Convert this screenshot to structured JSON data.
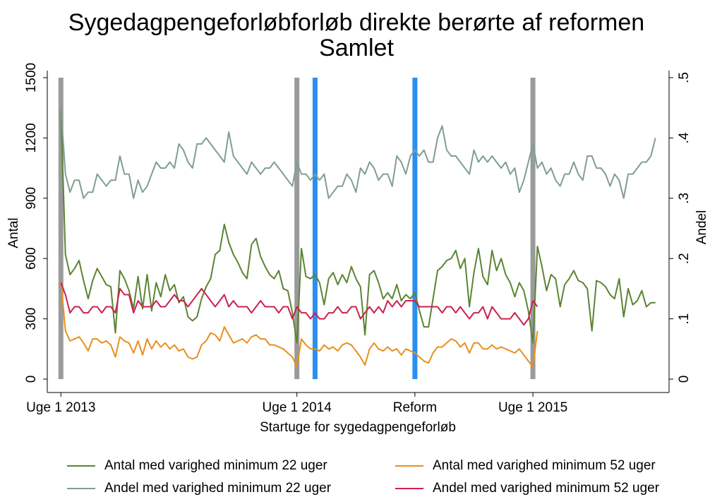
{
  "chart_data": {
    "type": "line",
    "title": "Sygedagpengeforløbforløb direkte berørte af reformen",
    "subtitle": "Samlet",
    "x_label": "Startuge for sygedagpengeforløb",
    "y_label": "Antal",
    "y2_label": "Andel",
    "x": [
      0,
      1,
      2,
      3,
      4,
      5,
      6,
      7,
      8,
      9,
      10,
      11,
      12,
      13,
      14,
      15,
      16,
      17,
      18,
      19,
      20,
      21,
      22,
      23,
      24,
      25,
      26,
      27,
      28,
      29,
      30,
      31,
      32,
      33,
      34,
      35,
      36,
      37,
      38,
      39,
      40,
      41,
      42,
      43,
      44,
      45,
      46,
      47,
      48,
      49,
      50,
      51,
      52,
      53,
      54,
      55,
      56,
      57,
      58,
      59,
      60,
      61,
      62,
      63,
      64,
      65,
      66,
      67,
      68,
      69,
      70,
      71,
      72,
      73,
      74,
      75,
      76,
      77,
      78,
      79,
      80,
      81,
      82,
      83,
      84,
      85,
      86,
      87,
      88,
      89,
      90,
      91,
      92,
      93,
      94,
      95,
      96,
      97,
      98,
      99,
      100,
      101,
      102,
      103,
      104,
      105,
      106,
      107,
      108,
      109,
      110,
      111,
      112,
      113,
      114,
      115,
      116,
      117,
      118,
      119,
      120,
      121,
      122,
      123,
      124,
      125,
      126,
      127,
      128,
      129,
      130,
      131
    ],
    "xlim": [
      -3,
      134
    ],
    "xticks": [
      {
        "value": 0,
        "label": "Uge 1 2013"
      },
      {
        "value": 52,
        "label": "Uge 1 2014"
      },
      {
        "value": 78,
        "label": "Reform"
      },
      {
        "value": 104,
        "label": "Uge 1 2015"
      }
    ],
    "ylim": [
      0,
      1500
    ],
    "yticks": [
      0,
      300,
      600,
      900,
      1200,
      1500
    ],
    "y2lim": [
      0,
      0.5
    ],
    "y2ticks": [
      0,
      {
        "value": 0.1,
        "label": ".1"
      },
      {
        "value": 0.2,
        "label": ".2"
      },
      {
        "value": 0.3,
        "label": ".3"
      },
      {
        "value": 0.4,
        "label": ".4"
      },
      {
        "value": 0.5,
        "label": ".5"
      }
    ],
    "reference_lines": [
      {
        "x": 0,
        "color": "#9a9a9a"
      },
      {
        "x": 52,
        "color": "#9a9a9a"
      },
      {
        "x": 56,
        "color": "#2b8ff0"
      },
      {
        "x": 78,
        "color": "#2b8ff0"
      },
      {
        "x": 104,
        "color": "#9a9a9a"
      }
    ],
    "series": [
      {
        "name": "Antal med varighed minimum 22 uger",
        "color": "#5b8432",
        "axis": "y",
        "values": [
          1340,
          620,
          520,
          550,
          590,
          490,
          400,
          490,
          550,
          510,
          470,
          460,
          230,
          540,
          500,
          440,
          350,
          510,
          350,
          520,
          340,
          480,
          410,
          520,
          440,
          470,
          380,
          410,
          310,
          290,
          310,
          400,
          460,
          500,
          620,
          640,
          770,
          680,
          620,
          580,
          530,
          500,
          670,
          700,
          610,
          560,
          520,
          500,
          540,
          450,
          440,
          330,
          180,
          650,
          510,
          500,
          520,
          480,
          370,
          500,
          530,
          470,
          520,
          480,
          560,
          500,
          460,
          220,
          520,
          540,
          480,
          400,
          430,
          400,
          470,
          390,
          420,
          400,
          430,
          340,
          260,
          260,
          400,
          540,
          560,
          590,
          600,
          640,
          550,
          600,
          360,
          530,
          650,
          510,
          470,
          640,
          540,
          600,
          520,
          480,
          410,
          480,
          440,
          340,
          180,
          660,
          560,
          440,
          520,
          500,
          360,
          470,
          500,
          540,
          490,
          480,
          450,
          240,
          490,
          480,
          460,
          420,
          400,
          500,
          310,
          450,
          370,
          390,
          440,
          360,
          380,
          380
        ]
      },
      {
        "name": "Antal med varighed minimum 52 uger",
        "color": "#e8901c",
        "axis": "y",
        "values": [
          490,
          240,
          190,
          200,
          210,
          180,
          140,
          200,
          200,
          180,
          190,
          170,
          110,
          210,
          190,
          180,
          130,
          190,
          120,
          200,
          150,
          190,
          160,
          180,
          150,
          170,
          140,
          150,
          110,
          100,
          110,
          170,
          190,
          230,
          220,
          190,
          260,
          220,
          180,
          190,
          200,
          180,
          210,
          220,
          200,
          200,
          170,
          170,
          160,
          150,
          130,
          110,
          60,
          200,
          170,
          150,
          150,
          140,
          170,
          150,
          160,
          140,
          170,
          180,
          170,
          140,
          110,
          70,
          150,
          180,
          150,
          140,
          160,
          140,
          150,
          120,
          150,
          140,
          130,
          110,
          90,
          80,
          130,
          160,
          160,
          180,
          200,
          190,
          160,
          180,
          130,
          180,
          180,
          150,
          150,
          170,
          150,
          160,
          150,
          140,
          130,
          150,
          120,
          90,
          60,
          240,
          null,
          null,
          null,
          null,
          null,
          null,
          null,
          null,
          null,
          null,
          null,
          null,
          null,
          null,
          null,
          null,
          null,
          null,
          null,
          null,
          null,
          null,
          null,
          null,
          null,
          null
        ]
      },
      {
        "name": "Andel med varighed minimum 22 uger",
        "color": "#7f9f90",
        "axis": "y2",
        "values": [
          0.45,
          0.34,
          0.31,
          0.33,
          0.33,
          0.3,
          0.31,
          0.31,
          0.34,
          0.33,
          0.32,
          0.33,
          0.33,
          0.37,
          0.34,
          0.34,
          0.3,
          0.33,
          0.31,
          0.32,
          0.34,
          0.36,
          0.35,
          0.35,
          0.36,
          0.35,
          0.39,
          0.38,
          0.36,
          0.35,
          0.39,
          0.39,
          0.4,
          0.39,
          0.38,
          0.37,
          0.36,
          0.41,
          0.37,
          0.36,
          0.35,
          0.34,
          0.36,
          0.35,
          0.34,
          0.35,
          0.35,
          0.36,
          0.35,
          0.34,
          0.33,
          0.32,
          0.36,
          0.34,
          0.34,
          0.33,
          0.34,
          0.33,
          0.34,
          0.3,
          0.31,
          0.32,
          0.32,
          0.34,
          0.33,
          0.31,
          0.35,
          0.34,
          0.36,
          0.35,
          0.33,
          0.34,
          0.34,
          0.32,
          0.37,
          0.36,
          0.34,
          0.37,
          0.38,
          0.37,
          0.38,
          0.36,
          0.36,
          0.4,
          0.42,
          0.38,
          0.37,
          0.37,
          0.36,
          0.35,
          0.34,
          0.38,
          0.36,
          0.37,
          0.36,
          0.37,
          0.36,
          0.35,
          0.36,
          0.34,
          0.35,
          0.31,
          0.33,
          0.36,
          0.39,
          0.35,
          0.36,
          0.34,
          0.35,
          0.33,
          0.32,
          0.34,
          0.34,
          0.36,
          0.34,
          0.33,
          0.37,
          0.37,
          0.35,
          0.35,
          0.34,
          0.32,
          0.34,
          0.33,
          0.3,
          0.34,
          0.34,
          0.35,
          0.36,
          0.36,
          0.37,
          0.4
        ]
      },
      {
        "name": "Andel med varighed minimum 52 uger",
        "color": "#c9234f",
        "axis": "y2",
        "values": [
          0.16,
          0.14,
          0.11,
          0.12,
          0.12,
          0.11,
          0.11,
          0.12,
          0.12,
          0.11,
          0.12,
          0.12,
          0.11,
          0.15,
          0.14,
          0.14,
          0.11,
          0.13,
          0.12,
          0.12,
          0.12,
          0.13,
          0.12,
          0.12,
          0.13,
          0.14,
          0.13,
          0.13,
          0.12,
          0.13,
          0.14,
          0.15,
          0.14,
          0.13,
          0.12,
          0.13,
          0.14,
          0.12,
          0.13,
          0.12,
          0.12,
          0.12,
          0.11,
          0.12,
          0.13,
          0.12,
          0.12,
          0.12,
          0.11,
          0.12,
          0.12,
          0.1,
          0.12,
          0.11,
          0.11,
          0.1,
          0.11,
          0.1,
          0.1,
          0.11,
          0.11,
          0.12,
          0.11,
          0.11,
          0.12,
          0.12,
          0.1,
          0.11,
          0.12,
          0.11,
          0.12,
          0.11,
          0.13,
          0.12,
          0.13,
          0.12,
          0.13,
          0.13,
          0.13,
          0.12,
          0.12,
          0.12,
          0.12,
          0.12,
          0.11,
          0.12,
          0.12,
          0.11,
          0.12,
          0.11,
          0.1,
          0.11,
          0.11,
          0.12,
          0.1,
          0.12,
          0.11,
          0.1,
          0.1,
          0.1,
          0.11,
          0.1,
          0.09,
          0.1,
          0.13,
          0.12,
          null,
          null,
          null,
          null,
          null,
          null,
          null,
          null,
          null,
          null,
          null,
          null,
          null,
          null,
          null,
          null,
          null,
          null,
          null,
          null,
          null,
          null,
          null,
          null,
          null,
          null
        ]
      }
    ]
  }
}
